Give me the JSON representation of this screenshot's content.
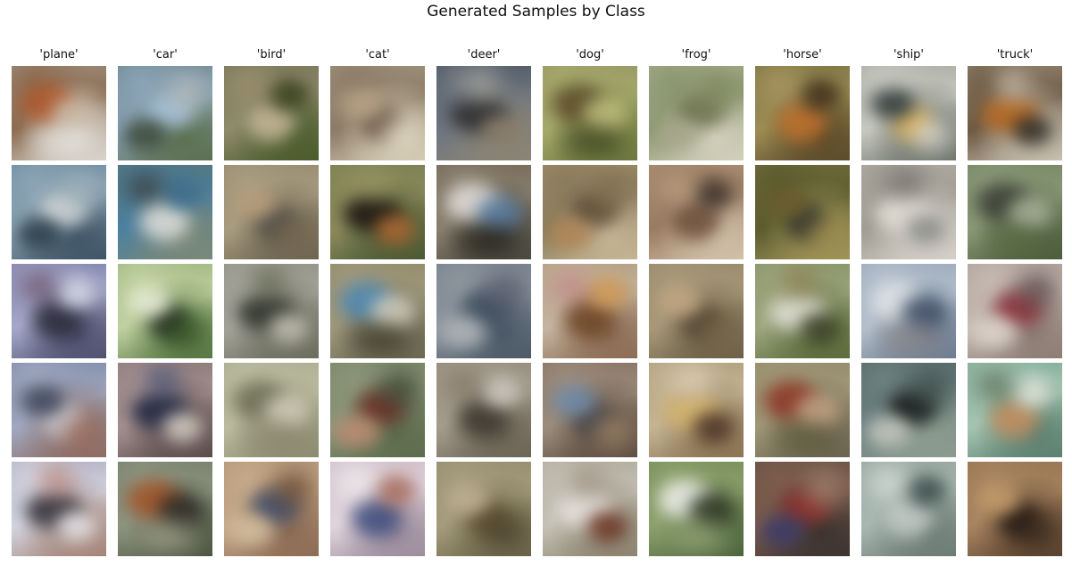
{
  "figure": {
    "title": "Generated Samples by Class",
    "column_titles": [
      "'plane'",
      "'car'",
      "'bird'",
      "'cat'",
      "'deer'",
      "'dog'",
      "'frog'",
      "'horse'",
      "'ship'",
      "'truck'"
    ],
    "rows": 5
  },
  "tiles": [
    [
      {
        "bg": [
          "#a9a095",
          "#8b6b50",
          "#d8d4cc"
        ],
        "blobs": [
          "#b0582c",
          "#c9b9a6",
          "#e2e2dc"
        ]
      },
      {
        "bg": [
          "#627a7c",
          "#8aa3b6",
          "#5c7050"
        ],
        "blobs": [
          "#a6c2dc",
          "#3e4a3c",
          "#b9c0c4"
        ]
      },
      {
        "bg": [
          "#6f6c55",
          "#8e8a6a",
          "#4a5c2c"
        ],
        "blobs": [
          "#c8b89a",
          "#39401e",
          "#9c8c6a"
        ]
      },
      {
        "bg": [
          "#a9a08a",
          "#8c7b66",
          "#d4cbb4"
        ],
        "blobs": [
          "#5a4534",
          "#b8a286",
          "#e0d8c4"
        ]
      },
      {
        "bg": [
          "#3c4a55",
          "#6f7680",
          "#8a8575"
        ],
        "blobs": [
          "#2a2a2c",
          "#8a7c6a",
          "#b0aaa0"
        ]
      },
      {
        "bg": [
          "#8e8a60",
          "#a8ab6c",
          "#6f7a40"
        ],
        "blobs": [
          "#5a4a2a",
          "#c2c080",
          "#3c4420"
        ]
      },
      {
        "bg": [
          "#b5b59a",
          "#8c9870",
          "#d2d0bc"
        ],
        "blobs": [
          "#6c6f4e",
          "#a5a58a",
          "#7a8458"
        ]
      },
      {
        "bg": [
          "#6b6a3e",
          "#9c8c54",
          "#5c4a2a"
        ],
        "blobs": [
          "#c0702c",
          "#40301c",
          "#a89464"
        ]
      },
      {
        "bg": [
          "#9a9c92",
          "#c7c8c0",
          "#6c7268"
        ],
        "blobs": [
          "#d4a84c",
          "#2e3838",
          "#e6e6e0"
        ]
      },
      {
        "bg": [
          "#a79a86",
          "#6c5a44",
          "#c8c0b0"
        ],
        "blobs": [
          "#b8661c",
          "#2c2820",
          "#d8cfc0"
        ]
      }
    ],
    [
      {
        "bg": [
          "#5c7d95",
          "#8ba4b4",
          "#3f5566"
        ],
        "blobs": [
          "#d8dcdc",
          "#2c3e4a",
          "#a8b8c0"
        ]
      },
      {
        "bg": [
          "#5c7060",
          "#4c80a0",
          "#7a8878"
        ],
        "blobs": [
          "#e0e0dc",
          "#3a6c8c",
          "#3a3024"
        ]
      },
      {
        "bg": [
          "#8c8268",
          "#a89c80",
          "#6c6450"
        ],
        "blobs": [
          "#4c4a44",
          "#b89e7c",
          "#7c6a54"
        ]
      },
      {
        "bg": [
          "#6c7a4c",
          "#8c8a5c",
          "#4c5a34"
        ],
        "blobs": [
          "#14100e",
          "#b06834",
          "#9a9460"
        ]
      },
      {
        "bg": [
          "#6a5e4a",
          "#8a8070",
          "#4c4a40"
        ],
        "blobs": [
          "#e4e0dc",
          "#5a80a8",
          "#222018"
        ]
      },
      {
        "bg": [
          "#a89470",
          "#8a7c5c",
          "#c4b494"
        ],
        "blobs": [
          "#5c4a36",
          "#b08454",
          "#7c6c4c"
        ]
      },
      {
        "bg": [
          "#b49a80",
          "#9a7c62",
          "#d2c0a8"
        ],
        "blobs": [
          "#6a4c38",
          "#3c3028",
          "#c4a888"
        ]
      },
      {
        "bg": [
          "#7c7440",
          "#5c5c30",
          "#a09458"
        ],
        "blobs": [
          "#202428",
          "#6a5c2c",
          "#9a8a4c"
        ]
      },
      {
        "bg": [
          "#b8b4ac",
          "#a09c94",
          "#d4d0c8"
        ],
        "blobs": [
          "#e4e0d8",
          "#8a8c88",
          "#6c6a64"
        ]
      },
      {
        "bg": [
          "#6c7c5c",
          "#8a9a78",
          "#4c5c3c"
        ],
        "blobs": [
          "#3a3c34",
          "#a8b49a",
          "#5a6c44"
        ]
      }
    ],
    [
      {
        "bg": [
          "#6a6c9c",
          "#a4a8c8",
          "#505070"
        ],
        "blobs": [
          "#2a2a38",
          "#d8dce8",
          "#604058"
        ]
      },
      {
        "bg": [
          "#8ca870",
          "#c0d0a0",
          "#5a7a44"
        ],
        "blobs": [
          "#1c241c",
          "#e8ecd8",
          "#3a5a2c"
        ]
      },
      {
        "bg": [
          "#8a887c",
          "#a4a49a",
          "#6a6c5c"
        ],
        "blobs": [
          "#2c3028",
          "#c4c0b4",
          "#5c6048"
        ]
      },
      {
        "bg": [
          "#8a8460",
          "#a0987c",
          "#6c6a54"
        ],
        "blobs": [
          "#4c88b4",
          "#d4d0c0",
          "#3c3828"
        ]
      },
      {
        "bg": [
          "#6c7884",
          "#8c949c",
          "#4c5a68"
        ],
        "blobs": [
          "#3c4c5c",
          "#b4b8bc",
          "#5c6070"
        ]
      },
      {
        "bg": [
          "#a8906c",
          "#c4b4a0",
          "#8c6c54"
        ],
        "blobs": [
          "#6c4424",
          "#d49c54",
          "#c07c7c"
        ]
      },
      {
        "bg": [
          "#8c8264",
          "#a89878",
          "#6c6048"
        ],
        "blobs": [
          "#4c4030",
          "#c4a884",
          "#7c6a4c"
        ]
      },
      {
        "bg": [
          "#7c8c5c",
          "#9ca47c",
          "#5c6c3c"
        ],
        "blobs": [
          "#e4e4dc",
          "#3c4028",
          "#8a7a4c"
        ]
      },
      {
        "bg": [
          "#8c9cb0",
          "#b4c0cc",
          "#6c7c90"
        ],
        "blobs": [
          "#e0e4e8",
          "#3c4c64",
          "#8c8888"
        ]
      },
      {
        "bg": [
          "#a4948c",
          "#c4b8b0",
          "#8c7c74"
        ],
        "blobs": [
          "#8c2c38",
          "#e0d8d0",
          "#5c4c4c"
        ]
      }
    ],
    [
      {
        "bg": [
          "#6c7c9c",
          "#a0a8c0",
          "#8c6c64"
        ],
        "blobs": [
          "#d0d4dc",
          "#3c4458",
          "#9c6c5c"
        ]
      },
      {
        "bg": [
          "#7c6c68",
          "#a49090",
          "#5c4c4c"
        ],
        "blobs": [
          "#1c2440",
          "#d8d0c4",
          "#3c4c74"
        ]
      },
      {
        "bg": [
          "#a4a488",
          "#bcbca0",
          "#8c8c70"
        ],
        "blobs": [
          "#6c6c54",
          "#d0ccb8",
          "#8c8870"
        ]
      },
      {
        "bg": [
          "#6c8060",
          "#8c9478",
          "#5c6c4c"
        ],
        "blobs": [
          "#6c2c24",
          "#c08c74",
          "#3c4834"
        ]
      },
      {
        "bg": [
          "#8c8474",
          "#a49c8c",
          "#6c6454"
        ],
        "blobs": [
          "#3c3830",
          "#d0ccc4",
          "#7c7060"
        ]
      },
      {
        "bg": [
          "#7c6454",
          "#9c8c7c",
          "#5c4c40"
        ],
        "blobs": [
          "#3c3c44",
          "#6c8cac",
          "#a88c6c"
        ]
      },
      {
        "bg": [
          "#a49470",
          "#c4b494",
          "#8c7454"
        ],
        "blobs": [
          "#d4b46c",
          "#4c3428",
          "#e4d4c0"
        ]
      },
      {
        "bg": [
          "#8c8460",
          "#a09878",
          "#6c6450"
        ],
        "blobs": [
          "#8c3424",
          "#c4a484",
          "#5c5c3c"
        ]
      },
      {
        "bg": [
          "#4c5c5c",
          "#6c8080",
          "#8c9c90"
        ],
        "blobs": [
          "#101414",
          "#c4c8c0",
          "#3c4c48"
        ]
      },
      {
        "bg": [
          "#6ca08c",
          "#a4c4b0",
          "#5c8070"
        ],
        "blobs": [
          "#c48c5c",
          "#e0e4d8",
          "#4c6048"
        ]
      }
    ],
    [
      {
        "bg": [
          "#9c9cb4",
          "#d4d4e0",
          "#a48478"
        ],
        "blobs": [
          "#2c2c34",
          "#e8e8ec",
          "#b87c6c"
        ]
      },
      {
        "bg": [
          "#6c7460",
          "#8c9480",
          "#4c5440"
        ],
        "blobs": [
          "#a45428",
          "#2c2824",
          "#a4a490"
        ]
      },
      {
        "bg": [
          "#a88c70",
          "#c4a888",
          "#8c6c54"
        ],
        "blobs": [
          "#3c4c6c",
          "#d4c0a0",
          "#6c4c34"
        ]
      },
      {
        "bg": [
          "#c4b0bc",
          "#e0d4dc",
          "#9c8c9c"
        ],
        "blobs": [
          "#3c4c7c",
          "#a86c5c",
          "#f0ecec"
        ]
      },
      {
        "bg": [
          "#8c8460",
          "#a49c7c",
          "#6c6448"
        ],
        "blobs": [
          "#5c4c30",
          "#c0b094",
          "#4c4430"
        ]
      },
      {
        "bg": [
          "#a4a090",
          "#c4c0b4",
          "#8c8470"
        ],
        "blobs": [
          "#e8e4e0",
          "#6c3424",
          "#9c8c7c"
        ]
      },
      {
        "bg": [
          "#6c8450",
          "#8ca06c",
          "#4c643c"
        ],
        "blobs": [
          "#f0f0ec",
          "#2c3424",
          "#9cac7c"
        ]
      },
      {
        "bg": [
          "#5c4c40",
          "#7c5c4c",
          "#3c3430"
        ],
        "blobs": [
          "#8c2c2c",
          "#3c3c6c",
          "#a48470"
        ]
      },
      {
        "bg": [
          "#8c9c94",
          "#a8b8b0",
          "#6c7c74"
        ],
        "blobs": [
          "#c4ccc8",
          "#3c4c4c",
          "#e0e4e0"
        ]
      },
      {
        "bg": [
          "#8c6c48",
          "#a88460",
          "#5c4430"
        ],
        "blobs": [
          "#1c1410",
          "#c49c6c",
          "#3c2c20"
        ]
      }
    ]
  ]
}
